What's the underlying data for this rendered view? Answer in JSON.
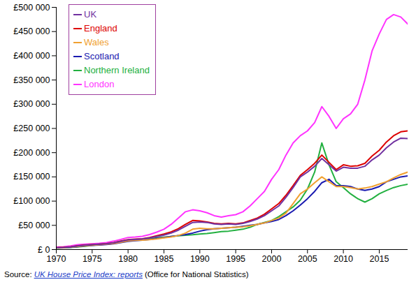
{
  "chart_data": {
    "type": "line",
    "x": [
      1970,
      1971,
      1972,
      1973,
      1974,
      1975,
      1976,
      1977,
      1978,
      1979,
      1980,
      1981,
      1982,
      1983,
      1984,
      1985,
      1986,
      1987,
      1988,
      1989,
      1990,
      1991,
      1992,
      1993,
      1994,
      1995,
      1996,
      1997,
      1998,
      1999,
      2000,
      2001,
      2002,
      2003,
      2004,
      2005,
      2006,
      2007,
      2008,
      2009,
      2010,
      2011,
      2012,
      2013,
      2014,
      2015,
      2016,
      2017,
      2018,
      2019
    ],
    "series": [
      {
        "name": "UK",
        "color": "#7030A0",
        "values": [
          4000,
          4500,
          5500,
          7500,
          9000,
          10000,
          11000,
          12000,
          14000,
          17000,
          20000,
          21000,
          22000,
          24000,
          27000,
          30000,
          34000,
          40000,
          48000,
          56000,
          57000,
          56000,
          53000,
          52000,
          53000,
          52000,
          54000,
          58000,
          63000,
          70000,
          80000,
          90000,
          108000,
          128000,
          150000,
          160000,
          172000,
          188000,
          175000,
          162000,
          170000,
          168000,
          168000,
          172000,
          185000,
          195000,
          210000,
          222000,
          230000,
          229000
        ]
      },
      {
        "name": "England",
        "color": "#DD0000",
        "values": [
          4000,
          4600,
          5700,
          7800,
          9300,
          10300,
          11300,
          12300,
          14500,
          17500,
          20500,
          21500,
          22500,
          25000,
          28500,
          32000,
          36500,
          43000,
          52000,
          60000,
          59000,
          57000,
          54000,
          53000,
          54000,
          53000,
          55000,
          60000,
          65000,
          73000,
          84000,
          95000,
          112000,
          132000,
          153000,
          165000,
          178000,
          195000,
          180000,
          165000,
          175000,
          172000,
          173000,
          178000,
          193000,
          205000,
          222000,
          235000,
          243000,
          245000
        ]
      },
      {
        "name": "Wales",
        "color": "#F0A030",
        "values": [
          3500,
          4000,
          5000,
          6500,
          8000,
          9000,
          10000,
          11000,
          12500,
          15000,
          18000,
          19000,
          19500,
          20500,
          22000,
          24000,
          26000,
          29000,
          34000,
          42000,
          44000,
          43000,
          43000,
          44000,
          45000,
          46000,
          47000,
          49000,
          52000,
          55000,
          60000,
          65000,
          75000,
          95000,
          115000,
          125000,
          138000,
          150000,
          140000,
          130000,
          130000,
          128000,
          125000,
          127000,
          130000,
          135000,
          140000,
          148000,
          155000,
          160000
        ]
      },
      {
        "name": "Scotland",
        "color": "#1A1AB0",
        "values": [
          3500,
          4000,
          4800,
          6000,
          7500,
          8500,
          9500,
          10500,
          12000,
          14500,
          17000,
          18500,
          19500,
          21000,
          23000,
          25000,
          27000,
          29000,
          31000,
          34000,
          38000,
          41000,
          43000,
          44000,
          45000,
          46000,
          48000,
          50000,
          52000,
          55000,
          58000,
          62000,
          70000,
          80000,
          92000,
          105000,
          120000,
          138000,
          145000,
          132000,
          132000,
          130000,
          125000,
          122000,
          125000,
          130000,
          140000,
          145000,
          150000,
          152000
        ]
      },
      {
        "name": "Northern Ireland",
        "color": "#22B040",
        "values": [
          3000,
          3500,
          4200,
          5500,
          7000,
          8500,
          10000,
          11500,
          13500,
          16500,
          19000,
          20000,
          21000,
          22500,
          24000,
          25500,
          27000,
          28500,
          29500,
          30500,
          32000,
          33000,
          35000,
          37000,
          38000,
          40000,
          42000,
          46000,
          52000,
          56000,
          60000,
          68000,
          78000,
          88000,
          102000,
          125000,
          160000,
          220000,
          175000,
          140000,
          128000,
          115000,
          105000,
          98000,
          105000,
          115000,
          122000,
          128000,
          132000,
          135000
        ]
      },
      {
        "name": "London",
        "color": "#FF33FF",
        "values": [
          5000,
          5800,
          7500,
          10000,
          11000,
          12000,
          13000,
          14500,
          17500,
          21000,
          25000,
          26000,
          27500,
          31000,
          36000,
          42000,
          52000,
          65000,
          78000,
          82000,
          80000,
          76000,
          70000,
          67000,
          70000,
          72000,
          78000,
          90000,
          105000,
          120000,
          145000,
          165000,
          195000,
          220000,
          235000,
          245000,
          262000,
          295000,
          275000,
          250000,
          270000,
          280000,
          300000,
          350000,
          410000,
          445000,
          475000,
          485000,
          480000,
          465000
        ]
      }
    ],
    "xlim": [
      1970,
      2019
    ],
    "xticks": [
      1970,
      1975,
      1980,
      1985,
      1990,
      1995,
      2000,
      2005,
      2010,
      2015
    ],
    "ylim": [
      0,
      500000
    ],
    "yticks": [
      {
        "value": 0,
        "label": "£ 0"
      },
      {
        "value": 50000,
        "label": "£50 000"
      },
      {
        "value": 100000,
        "label": "£100 000"
      },
      {
        "value": 150000,
        "label": "£150 000"
      },
      {
        "value": 200000,
        "label": "£200 000"
      },
      {
        "value": 250000,
        "label": "£250 000"
      },
      {
        "value": 300000,
        "label": "£300 000"
      },
      {
        "value": 350000,
        "label": "£350 000"
      },
      {
        "value": 400000,
        "label": "£400 000"
      },
      {
        "value": 450000,
        "label": "£450 000"
      },
      {
        "value": 500000,
        "label": "£500 000"
      }
    ],
    "grid": false,
    "legend": "top-left",
    "source_label": "Source:",
    "source_link": "UK House Price Index: reports",
    "source_note": "(Office for National Statistics)"
  }
}
